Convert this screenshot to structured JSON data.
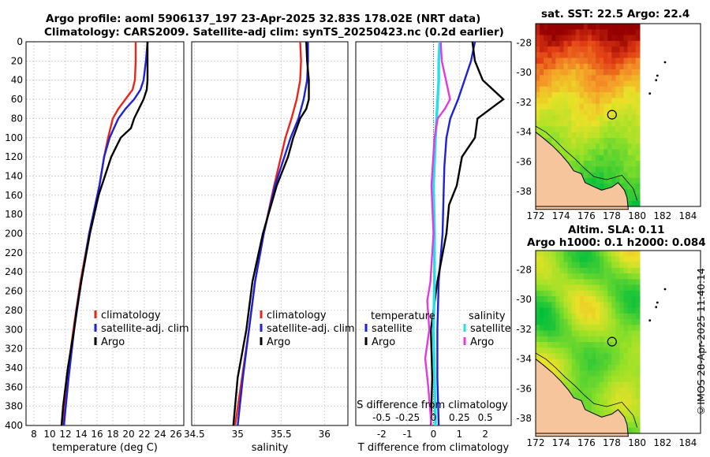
{
  "titles": {
    "main_line1": "Argo profile: aoml 5906137_197 23-Apr-2025 32.83S 178.02E (NRT data)",
    "main_line2": "Climatology: CARS2009. Satellite-adj clim: synTS_20250423.nc (0.2d earlier)",
    "sst": "sat. SST: 22.5 Argo: 22.4",
    "sla_line1": "Altim. SLA: 0.11",
    "sla_line2": "Argo h1000: 0.1 h2000: 0.084"
  },
  "credit": "©IMOS 28-Apr-2025 11:40:14",
  "depth_ticks": [
    0,
    20,
    40,
    60,
    80,
    100,
    120,
    140,
    160,
    180,
    200,
    220,
    240,
    260,
    280,
    300,
    320,
    340,
    360,
    380,
    400
  ],
  "colors": {
    "climatology": "#e8251c",
    "satellite": "#1c22d6",
    "argo": "#000000",
    "satellite_salinity": "#22e0e6",
    "argo_salinity": "#e23ae0"
  },
  "chart_data": [
    {
      "type": "line",
      "panel": "temperature",
      "xlabel": "temperature (deg C)",
      "ylabel": "depth",
      "xlim": [
        7,
        27
      ],
      "ylim": [
        400,
        0
      ],
      "xticks": [
        "8",
        "10",
        "12",
        "14",
        "16",
        "18",
        "20",
        "22",
        "24",
        "26"
      ],
      "xtick_values": [
        8,
        10,
        12,
        14,
        16,
        18,
        20,
        22,
        24,
        26
      ],
      "legend": [
        "climatology",
        "satellite-adj. clim",
        "Argo"
      ],
      "series": [
        {
          "name": "climatology",
          "depth": [
            0,
            20,
            40,
            50,
            60,
            70,
            80,
            100,
            120,
            150,
            200,
            250,
            300,
            350,
            400
          ],
          "values": [
            20.9,
            20.9,
            20.8,
            20.5,
            19.6,
            18.7,
            18.0,
            17.4,
            16.9,
            16.3,
            15.0,
            13.9,
            13.0,
            12.2,
            11.6
          ]
        },
        {
          "name": "satellite-adj. clim",
          "depth": [
            0,
            20,
            40,
            50,
            60,
            70,
            80,
            100,
            120,
            150,
            200,
            250,
            300,
            350,
            400
          ],
          "values": [
            22.4,
            22.2,
            21.9,
            21.5,
            20.7,
            19.6,
            18.7,
            17.6,
            16.9,
            16.3,
            15.0,
            14.0,
            13.1,
            12.4,
            11.8
          ]
        },
        {
          "name": "Argo",
          "depth": [
            0,
            20,
            40,
            50,
            60,
            70,
            80,
            90,
            100,
            120,
            140,
            160,
            200,
            250,
            280,
            300,
            340,
            360,
            380,
            400
          ],
          "values": [
            22.4,
            22.4,
            22.4,
            22.3,
            21.9,
            21.3,
            20.7,
            20.3,
            19.0,
            17.8,
            17.0,
            16.2,
            15.1,
            14.0,
            13.4,
            13.1,
            12.3,
            12.0,
            11.7,
            11.5
          ]
        }
      ]
    },
    {
      "type": "line",
      "panel": "salinity",
      "xlabel": "salinity",
      "ylabel": "depth",
      "xlim": [
        34.47,
        36.27
      ],
      "ylim": [
        400,
        0
      ],
      "xticks": [
        "34.5",
        "35",
        "35.5",
        "36"
      ],
      "xtick_values": [
        34.5,
        35,
        35.5,
        36
      ],
      "legend": [
        "climatology",
        "satellite-adj. clim",
        "Argo"
      ],
      "series": [
        {
          "name": "climatology",
          "depth": [
            0,
            20,
            40,
            60,
            80,
            100,
            150,
            200,
            250,
            300,
            350,
            400
          ],
          "values": [
            35.72,
            35.73,
            35.72,
            35.68,
            35.62,
            35.55,
            35.42,
            35.3,
            35.2,
            35.13,
            35.05,
            34.97
          ]
        },
        {
          "name": "satellite-adj. clim",
          "depth": [
            0,
            20,
            40,
            60,
            80,
            100,
            150,
            200,
            250,
            300,
            350,
            400
          ],
          "values": [
            35.81,
            35.81,
            35.8,
            35.76,
            35.7,
            35.61,
            35.43,
            35.3,
            35.2,
            35.13,
            35.06,
            35.0
          ]
        },
        {
          "name": "Argo",
          "depth": [
            0,
            20,
            40,
            60,
            70,
            80,
            100,
            120,
            150,
            200,
            250,
            300,
            350,
            380,
            400
          ],
          "values": [
            35.79,
            35.8,
            35.82,
            35.82,
            35.79,
            35.72,
            35.64,
            35.58,
            35.45,
            35.29,
            35.17,
            35.1,
            35.0,
            34.97,
            34.95
          ]
        }
      ]
    },
    {
      "type": "line",
      "panel": "difference",
      "xlabel": "T difference from climatology",
      "ylabel": "depth",
      "xlim": [
        -3,
        3
      ],
      "ylim": [
        400,
        0
      ],
      "xticks": [
        "-2",
        "-1",
        "0",
        "1",
        "2"
      ],
      "xtick_values": [
        -2,
        -1,
        0,
        1,
        2
      ],
      "top_axis_label": "S difference from climatology",
      "top_xticks": [
        "-0.5",
        "-0.25",
        "0",
        "0.25",
        "0.5"
      ],
      "top_xtick_values": [
        -0.5,
        -0.25,
        0,
        0.25,
        0.5
      ],
      "legend_left_title": "temperature",
      "legend_right_title": "salinity",
      "legend_left": [
        "satellite",
        "Argo"
      ],
      "legend_right": [
        "satellite",
        "Argo"
      ],
      "series": [
        {
          "name": "T satellite",
          "depth": [
            0,
            20,
            40,
            60,
            80,
            100,
            130,
            150,
            200,
            250,
            300,
            350,
            400
          ],
          "values": [
            1.6,
            1.45,
            1.2,
            0.95,
            0.65,
            0.5,
            0.42,
            0.4,
            0.35,
            0.2,
            0.15,
            0.15,
            0.2
          ]
        },
        {
          "name": "T Argo",
          "depth": [
            0,
            20,
            40,
            50,
            60,
            70,
            80,
            100,
            120,
            150,
            170,
            200,
            250,
            300,
            350,
            400
          ],
          "values": [
            1.5,
            1.6,
            1.9,
            2.3,
            2.7,
            2.2,
            1.7,
            1.6,
            1.1,
            0.9,
            0.6,
            0.5,
            0.15,
            -0.1,
            -0.05,
            -0.1
          ]
        },
        {
          "name": "S satellite",
          "depth": [
            0,
            20,
            40,
            60,
            80,
            100,
            150,
            200,
            250,
            300,
            350,
            400
          ],
          "values": [
            0.06,
            0.05,
            0.05,
            0.04,
            0.03,
            0.02,
            0.0,
            0.01,
            0.01,
            0.0,
            0.01,
            0.02
          ]
        },
        {
          "name": "S Argo",
          "depth": [
            0,
            20,
            40,
            60,
            70,
            80,
            100,
            150,
            200,
            250,
            270,
            300,
            330,
            360,
            400
          ],
          "values": [
            0.07,
            0.08,
            0.12,
            0.16,
            0.11,
            0.04,
            0.01,
            -0.02,
            0.0,
            -0.03,
            -0.06,
            -0.04,
            -0.08,
            -0.05,
            -0.02
          ]
        }
      ]
    },
    {
      "type": "heatmap",
      "panel": "sst_map",
      "title": "sat. SST: 22.5 Argo: 22.4",
      "xlim": [
        172,
        185
      ],
      "ylim": [
        -39,
        -26.7
      ],
      "xticks": [
        "172",
        "174",
        "176",
        "178",
        "180",
        "182",
        "184"
      ],
      "xtick_values": [
        172,
        174,
        176,
        178,
        180,
        182,
        184
      ],
      "yticks": [
        "-28",
        "-30",
        "-32",
        "-34",
        "-36",
        "-38"
      ],
      "ytick_values": [
        -28,
        -30,
        -32,
        -34,
        -36,
        -38
      ],
      "argo_position": [
        178.02,
        -32.83
      ]
    },
    {
      "type": "heatmap",
      "panel": "sla_map",
      "title": "Altim. SLA: 0.11",
      "xlim": [
        172,
        185
      ],
      "ylim": [
        -39,
        -26.7
      ],
      "xticks": [
        "172",
        "174",
        "176",
        "178",
        "180",
        "182",
        "184"
      ],
      "xtick_values": [
        172,
        174,
        176,
        178,
        180,
        182,
        184
      ],
      "yticks": [
        "-28",
        "-30",
        "-32",
        "-34",
        "-36",
        "-38"
      ],
      "ytick_values": [
        -28,
        -30,
        -32,
        -34,
        -36,
        -38
      ],
      "argo_position": [
        178.02,
        -32.83
      ]
    }
  ]
}
